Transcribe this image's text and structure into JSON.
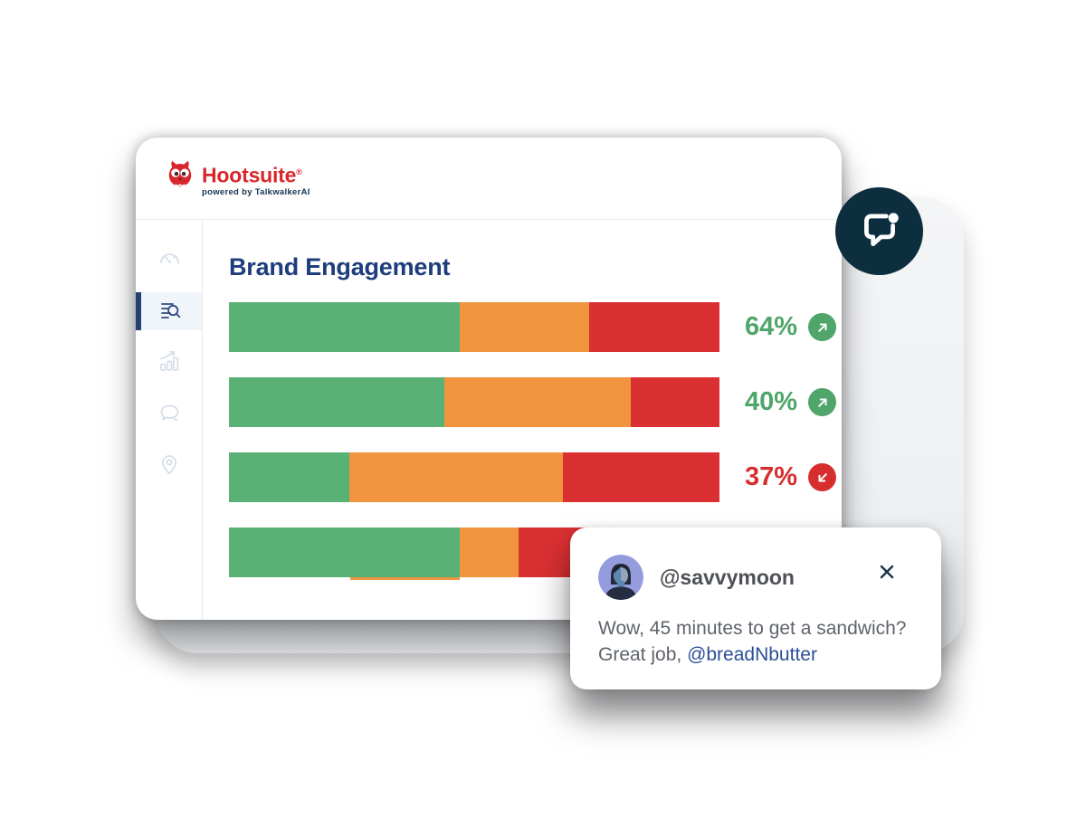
{
  "brand": {
    "name": "Hootsuite",
    "registered": "®",
    "tagline": "powered by TalkwalkerAI",
    "brand_red": "#D9262C",
    "tagline_navy": "#14334E"
  },
  "sidebar": {
    "active_color": "#2E4A7E",
    "inactive_color": "#D8DEE9",
    "active_bar_color": "#24406E",
    "items": [
      {
        "icon": "gauge-icon",
        "label": "dashboard",
        "active": false
      },
      {
        "icon": "list-search-icon",
        "label": "search-insights",
        "active": true
      },
      {
        "icon": "chart-growth-icon",
        "label": "analytics",
        "active": false
      },
      {
        "icon": "chat-bubble-icon",
        "label": "conversations",
        "active": false
      },
      {
        "icon": "location-pin-icon",
        "label": "locations",
        "active": false
      }
    ]
  },
  "chart_data": {
    "type": "bar",
    "orientation": "horizontal-stacked",
    "title": "Brand Engagement",
    "title_color": "#1D3D7C",
    "unit": "%",
    "legend": "none",
    "segment_colors": {
      "green": "#5AB176",
      "orange": "#F0943E",
      "red": "#DA3032"
    },
    "up_color": "#4FA56A",
    "down_color": "#D62E2E",
    "rows": [
      {
        "label": "64%",
        "trend": "up",
        "segments": [
          {
            "color": "green",
            "pct": 47.0
          },
          {
            "color": "orange",
            "pct": 26.4
          },
          {
            "color": "red",
            "pct": 26.6
          }
        ]
      },
      {
        "label": "40%",
        "trend": "up",
        "segments": [
          {
            "color": "green",
            "pct": 44.0
          },
          {
            "color": "orange",
            "pct": 38.0
          },
          {
            "color": "red",
            "pct": 18.0
          }
        ]
      },
      {
        "label": "37%",
        "trend": "down",
        "segments": [
          {
            "color": "green",
            "pct": 24.6
          },
          {
            "color": "orange",
            "pct": 43.5
          },
          {
            "color": "red",
            "pct": 31.9
          }
        ]
      },
      {
        "label": "",
        "trend": "",
        "segments": [
          {
            "color": "green",
            "pct": 47.0
          },
          {
            "color": "orange",
            "pct": 12.0
          },
          {
            "color": "red",
            "pct": 41.0
          }
        ],
        "sub_strip": {
          "color": "orange",
          "left_pct": 24.7,
          "width_pct": 22.3
        }
      }
    ]
  },
  "floating_button": {
    "icon": "chat-notification-icon",
    "bg": "#0D2E3F"
  },
  "notification": {
    "username": "@savvymoon",
    "line1": "Wow, 45 minutes to get a sandwich?",
    "line2_prefix": "Great job, ",
    "mention": "@breadNbutter",
    "mention_color": "#2C4E96"
  }
}
